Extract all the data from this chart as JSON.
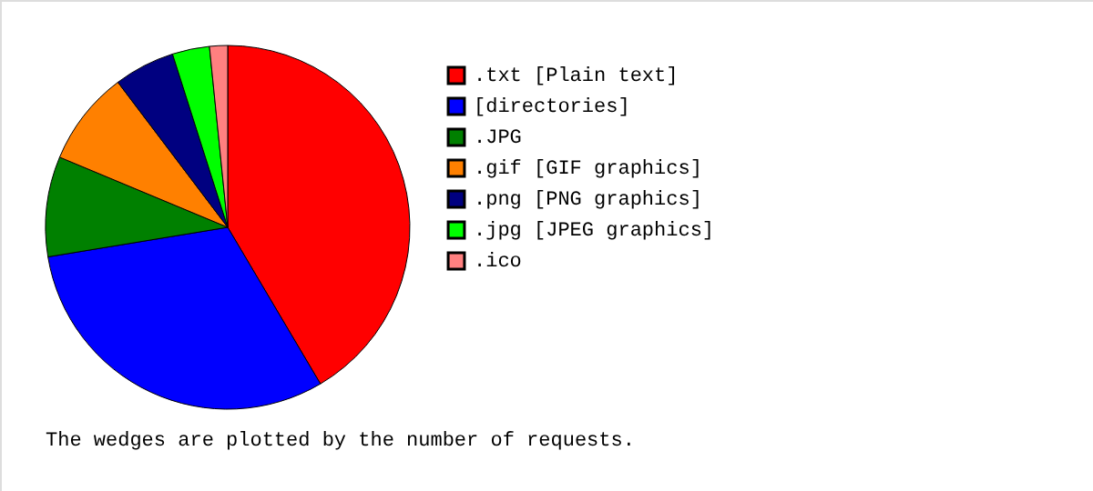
{
  "chart_data": {
    "type": "pie",
    "categories": [
      ".txt  [Plain text]",
      "[directories]",
      ".JPG",
      ".gif  [GIF graphics]",
      ".png  [PNG graphics]",
      ".jpg  [JPEG graphics]",
      ".ico"
    ],
    "values": [
      41.5,
      30.9,
      8.9,
      8.4,
      5.4,
      3.3,
      1.6
    ],
    "colors": [
      "#ff0000",
      "#0000ff",
      "#008000",
      "#ff8000",
      "#000080",
      "#00ff00",
      "#ff8080"
    ],
    "legend": "right",
    "annotations": [
      "The wedges are plotted by the number of requests."
    ]
  }
}
